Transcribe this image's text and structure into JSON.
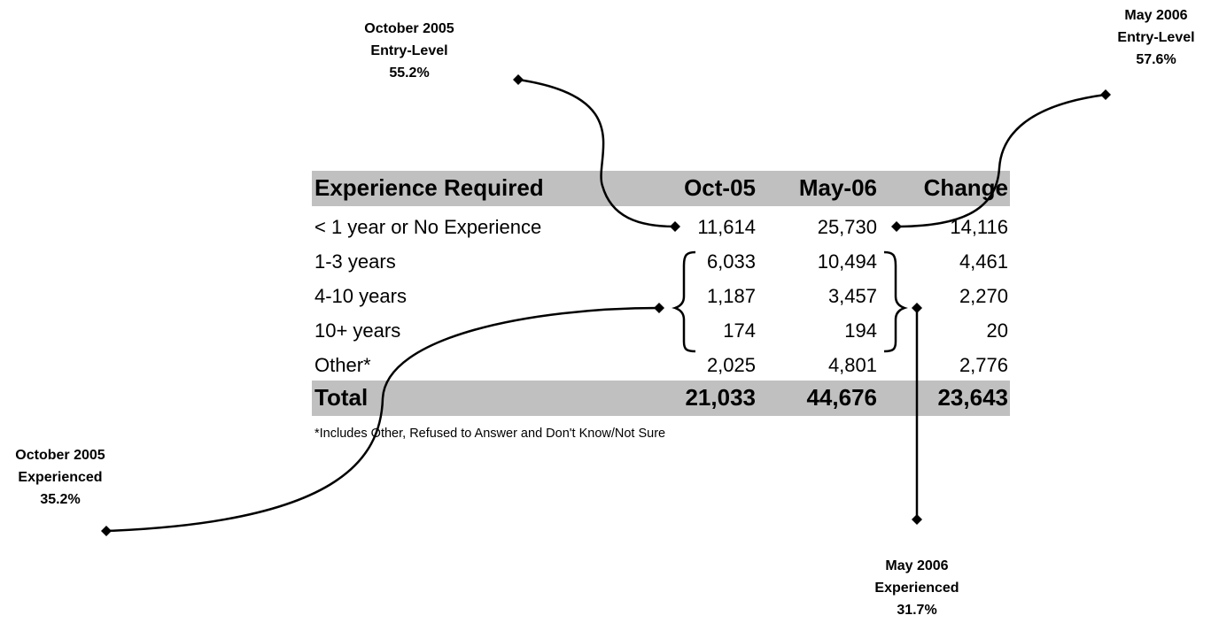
{
  "table": {
    "header": [
      "Experience Required",
      "Oct-05",
      "May-06",
      "Change"
    ],
    "rows": [
      [
        "< 1 year or No Experience",
        "11,614",
        "25,730",
        "14,116"
      ],
      [
        "1-3 years",
        "6,033",
        "10,494",
        "4,461"
      ],
      [
        "4-10 years",
        "1,187",
        "3,457",
        "2,270"
      ],
      [
        "10+ years",
        "174",
        "194",
        "20"
      ],
      [
        "Other*",
        "2,025",
        "4,801",
        "2,776"
      ]
    ],
    "total": [
      "Total",
      "21,033",
      "44,676",
      "23,643"
    ],
    "footnote": "*Includes Other, Refused to Answer and Don't Know/Not Sure"
  },
  "annotations": [
    {
      "lines": [
        "October 2005",
        "Entry-Level",
        "55.2%"
      ]
    },
    {
      "lines": [
        "May 2006",
        "Entry-Level",
        "57.6%"
      ]
    },
    {
      "lines": [
        "October 2005",
        "Experienced",
        "35.2%"
      ]
    },
    {
      "lines": [
        "May 2006",
        "Experienced",
        "31.7%"
      ]
    }
  ]
}
